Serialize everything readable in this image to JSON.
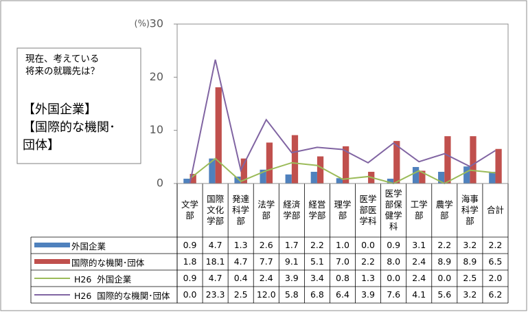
{
  "chart_data": {
    "type": "bar-line-table",
    "ylabel": "(%)",
    "annotation": [
      "現在、考えている\n将来の就職先は？",
      "【外国企業】\n【国際的な機関･\n団体】"
    ],
    "categories": [
      "文学\n部",
      "国際\n文化\n学部",
      "発達\n科学\n部",
      "法学\n部",
      "経済\n学部",
      "経営\n学部",
      "理学\n部",
      "医学\n部医\n学科",
      "医学\n部保\n健学\n科",
      "工学\n部",
      "農学\n部",
      "海事\n科学\n部",
      "合計"
    ],
    "ylim": [
      0,
      30
    ],
    "yticks": [
      0,
      10,
      20,
      30
    ],
    "grid": false,
    "series": [
      {
        "name": "外国企業",
        "kind": "bar",
        "color": "#4f81bd",
        "values": [
          0.9,
          4.7,
          1.3,
          2.6,
          1.7,
          2.2,
          1.0,
          0.0,
          0.9,
          3.1,
          2.2,
          3.2,
          2.2
        ],
        "value_labels": [
          "0.9",
          "4.7",
          "1.3",
          "2.6",
          "1.7",
          "2.2",
          "1.0",
          "0.0",
          "0.9",
          "3.1",
          "2.2",
          "3.2",
          "2.2"
        ]
      },
      {
        "name": "国際的な機関･団体",
        "kind": "bar",
        "color": "#c0504d",
        "values": [
          1.8,
          18.1,
          4.7,
          7.7,
          9.1,
          5.1,
          7.0,
          2.2,
          8.0,
          2.4,
          8.9,
          8.9,
          6.5
        ],
        "value_labels": [
          "1.8",
          "18.1",
          "4.7",
          "7.7",
          "9.1",
          "5.1",
          "7.0",
          "2.2",
          "8.0",
          "2.4",
          "8.9",
          "8.9",
          "6.5"
        ]
      },
      {
        "name": "H26  外国企業",
        "kind": "line",
        "color": "#9bbb59",
        "values": [
          0.9,
          4.7,
          0.4,
          2.4,
          3.9,
          3.4,
          0.8,
          1.3,
          0.0,
          2.4,
          0.0,
          2.5,
          2.0
        ],
        "value_labels": [
          "0.9",
          "4.7",
          "0.4",
          "2.4",
          "3.9",
          "3.4",
          "0.8",
          "1.3",
          "0.0",
          "2.4",
          "0.0",
          "2.5",
          "2.0"
        ]
      },
      {
        "name": "H26  国際的な機関･団体",
        "kind": "line",
        "color": "#8064a2",
        "values": [
          0.0,
          23.3,
          2.5,
          12.0,
          5.8,
          6.8,
          6.4,
          3.9,
          7.6,
          4.1,
          5.6,
          3.2,
          6.2
        ],
        "value_labels": [
          "0.0",
          "23.3",
          "2.5",
          "12.0",
          "5.8",
          "6.8",
          "6.4",
          "3.9",
          "7.6",
          "4.1",
          "5.6",
          "3.2",
          "6.2"
        ]
      }
    ]
  }
}
